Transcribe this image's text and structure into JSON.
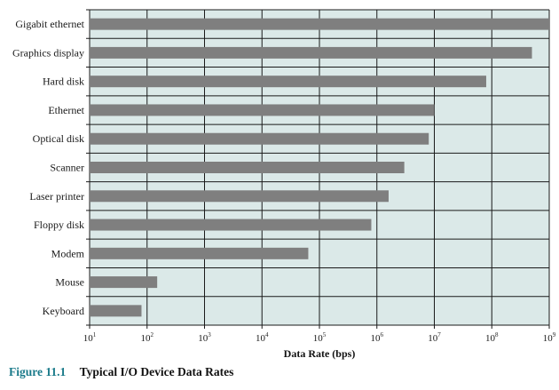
{
  "chart_data": {
    "type": "bar",
    "orientation": "horizontal",
    "categories": [
      "Gigabit ethernet",
      "Graphics display",
      "Hard disk",
      "Ethernet",
      "Optical disk",
      "Scanner",
      "Laser printer",
      "Floppy disk",
      "Modem",
      "Mouse",
      "Keyboard"
    ],
    "values": [
      1000000000,
      500000000,
      80000000,
      10000000,
      8000000,
      3000000,
      1600000,
      800000,
      64000,
      150,
      80
    ],
    "xlabel": "Data Rate (bps)",
    "xscale": "log",
    "xlim": [
      10,
      1000000000
    ],
    "x_ticks": [
      {
        "base": "10",
        "exp": "1"
      },
      {
        "base": "10",
        "exp": "2"
      },
      {
        "base": "10",
        "exp": "3"
      },
      {
        "base": "10",
        "exp": "4"
      },
      {
        "base": "10",
        "exp": "5"
      },
      {
        "base": "10",
        "exp": "6"
      },
      {
        "base": "10",
        "exp": "7"
      },
      {
        "base": "10",
        "exp": "8"
      },
      {
        "base": "10",
        "exp": "9"
      }
    ],
    "grid": true,
    "colors": {
      "plot_background": "#dbe9e8",
      "bar": "#7f7f7f",
      "grid": "#1a1a1a"
    }
  },
  "caption": {
    "figure_number": "Figure 11.1",
    "title": "Typical I/O Device Data Rates"
  }
}
